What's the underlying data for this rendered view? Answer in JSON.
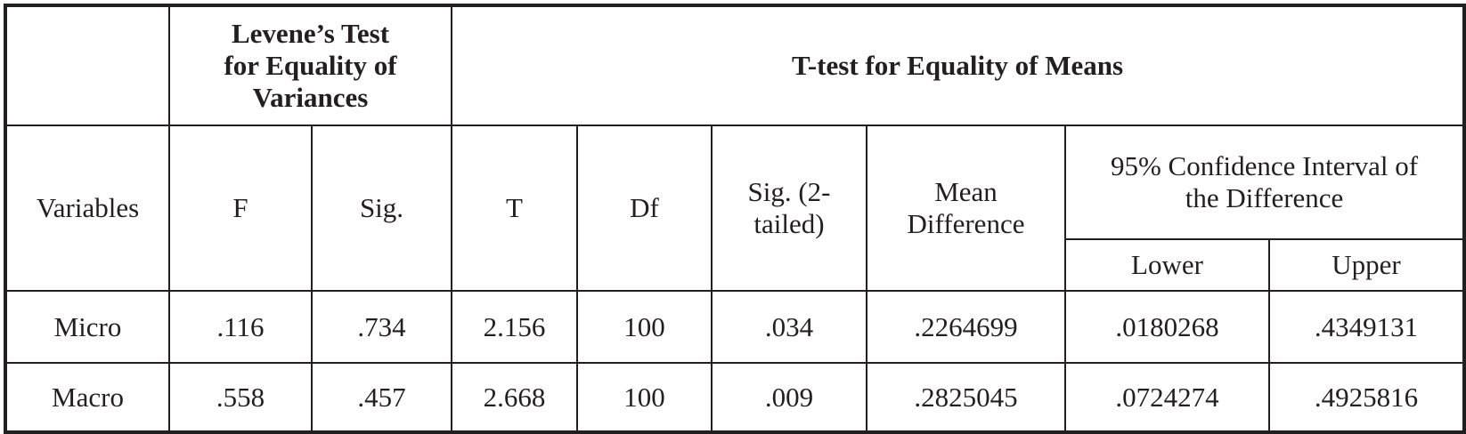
{
  "table": {
    "group_headers": [
      "Levene’s Test for Equality of Variances",
      "T-test for Equality of Means"
    ],
    "columns": [
      "Variables",
      "F",
      "Sig.",
      "T",
      "Df",
      "Sig. (2-tailed)",
      "Mean Difference"
    ],
    "ci_header": "95% Confidence Interval of the Difference",
    "ci_columns": [
      "Lower",
      "Upper"
    ],
    "rows": [
      [
        "Micro",
        ".116",
        ".734",
        "2.156",
        "100",
        ".034",
        ".2264699",
        ".0180268",
        ".4349131"
      ],
      [
        "Macro",
        ".558",
        ".457",
        "2.668",
        "100",
        ".009",
        ".2825045",
        ".0724274",
        ".4925816"
      ]
    ]
  }
}
